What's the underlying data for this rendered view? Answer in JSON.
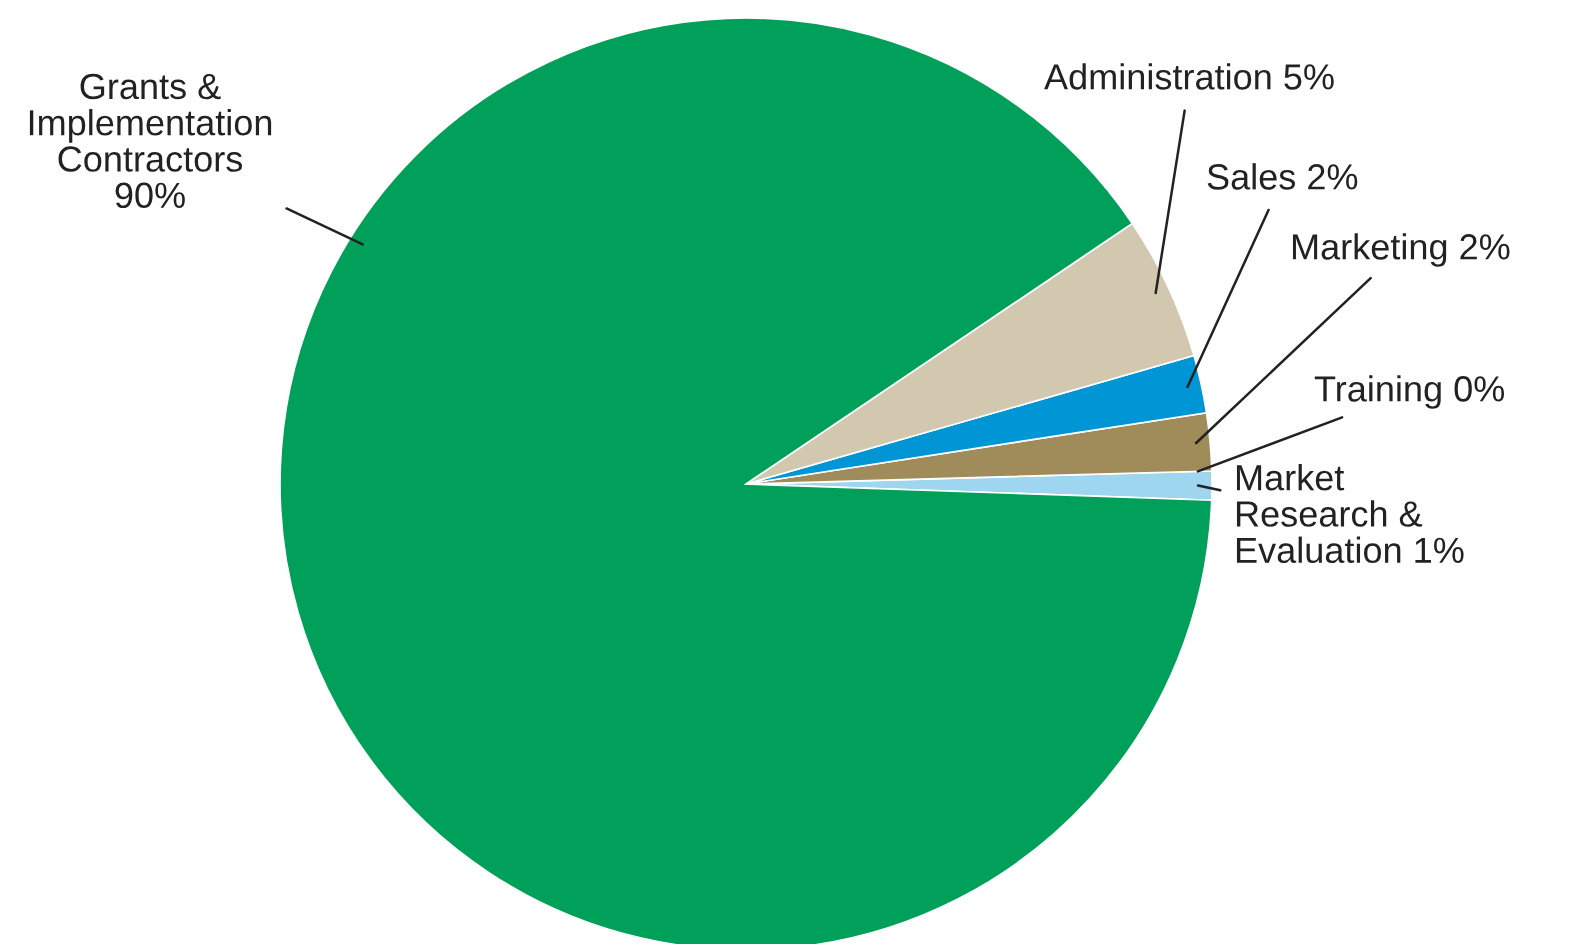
{
  "chart_data": {
    "type": "pie",
    "categories": [
      "Market\nResearch &\nEvaluation",
      "Training",
      "Marketing",
      "Sales",
      "Administration",
      "Grants &\nImplementation\nContractors"
    ],
    "values": [
      1,
      0,
      2,
      2,
      5,
      90
    ],
    "colors": [
      "#9dd6ee",
      "#fde08a",
      "#a08c5a",
      "#0096d6",
      "#d2c8b0",
      "#00a05a"
    ],
    "value_labels": [
      "1%",
      "0%",
      "2%",
      "2%",
      "5%",
      "90%"
    ]
  }
}
